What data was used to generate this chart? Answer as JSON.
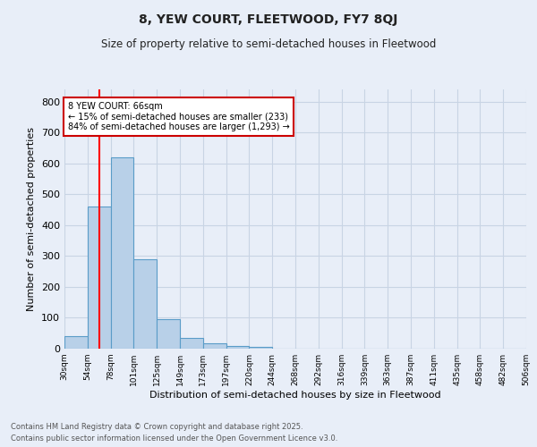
{
  "title": "8, YEW COURT, FLEETWOOD, FY7 8QJ",
  "subtitle": "Size of property relative to semi-detached houses in Fleetwood",
  "xlabel": "Distribution of semi-detached houses by size in Fleetwood",
  "ylabel": "Number of semi-detached properties",
  "bar_values": [
    40,
    460,
    620,
    290,
    95,
    35,
    17,
    10,
    5,
    0,
    0,
    0,
    0,
    0,
    0,
    0,
    0,
    0,
    0,
    0
  ],
  "bin_labels": [
    "30sqm",
    "54sqm",
    "78sqm",
    "101sqm",
    "125sqm",
    "149sqm",
    "173sqm",
    "197sqm",
    "220sqm",
    "244sqm",
    "268sqm",
    "292sqm",
    "316sqm",
    "339sqm",
    "363sqm",
    "387sqm",
    "411sqm",
    "435sqm",
    "458sqm",
    "482sqm",
    "506sqm"
  ],
  "bar_color": "#b8d0e8",
  "bar_edge_color": "#5a9cc8",
  "grid_color": "#c8d4e4",
  "background_color": "#e8eef8",
  "annotation_text": "8 YEW COURT: 66sqm\n← 15% of semi-detached houses are smaller (233)\n84% of semi-detached houses are larger (1,293) →",
  "annotation_box_color": "#ffffff",
  "annotation_box_edge": "#cc0000",
  "ylim": [
    0,
    840
  ],
  "yticks": [
    0,
    100,
    200,
    300,
    400,
    500,
    600,
    700,
    800
  ],
  "footer_line1": "Contains HM Land Registry data © Crown copyright and database right 2025.",
  "footer_line2": "Contains public sector information licensed under the Open Government Licence v3.0.",
  "figwidth": 6.0,
  "figheight": 5.0,
  "dpi": 100
}
